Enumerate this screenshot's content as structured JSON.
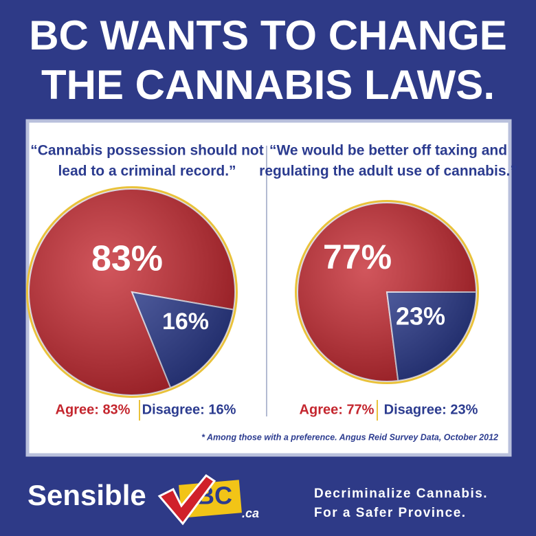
{
  "header": {
    "title": [
      "BC WANTS TO CHANGE",
      "THE CANNABIS LAWS."
    ]
  },
  "chart_data": [
    {
      "type": "pie",
      "title": [
        "“Cannabis possession should not",
        "lead to a criminal record.”"
      ],
      "categories": [
        "Agree",
        "Disagree"
      ],
      "values": [
        83,
        16
      ],
      "value_labels": [
        "83%",
        "16%"
      ],
      "legend_labels": [
        "Agree: 83%",
        "Disagree: 16%"
      ],
      "colors": [
        "#c4262e",
        "#2b3b8f"
      ]
    },
    {
      "type": "pie",
      "title": [
        "“We would be better off taxing and",
        "regulating the adult use of cannabis.”"
      ],
      "categories": [
        "Agree",
        "Disagree"
      ],
      "values": [
        77,
        23
      ],
      "value_labels": [
        "77%",
        "23%"
      ],
      "legend_labels": [
        "Agree: 77%",
        "Disagree: 23%"
      ],
      "colors": [
        "#c4262e",
        "#2b3b8f"
      ]
    }
  ],
  "footnote": "* Among those with a preference. Angus Reid Survey Data, October 2012",
  "footer": {
    "logo": "Sensible",
    "logo_mark": "BC",
    "logo_suffix": ".ca",
    "tagline": [
      "Decriminalize Cannabis.",
      "For a Safer Province."
    ]
  }
}
